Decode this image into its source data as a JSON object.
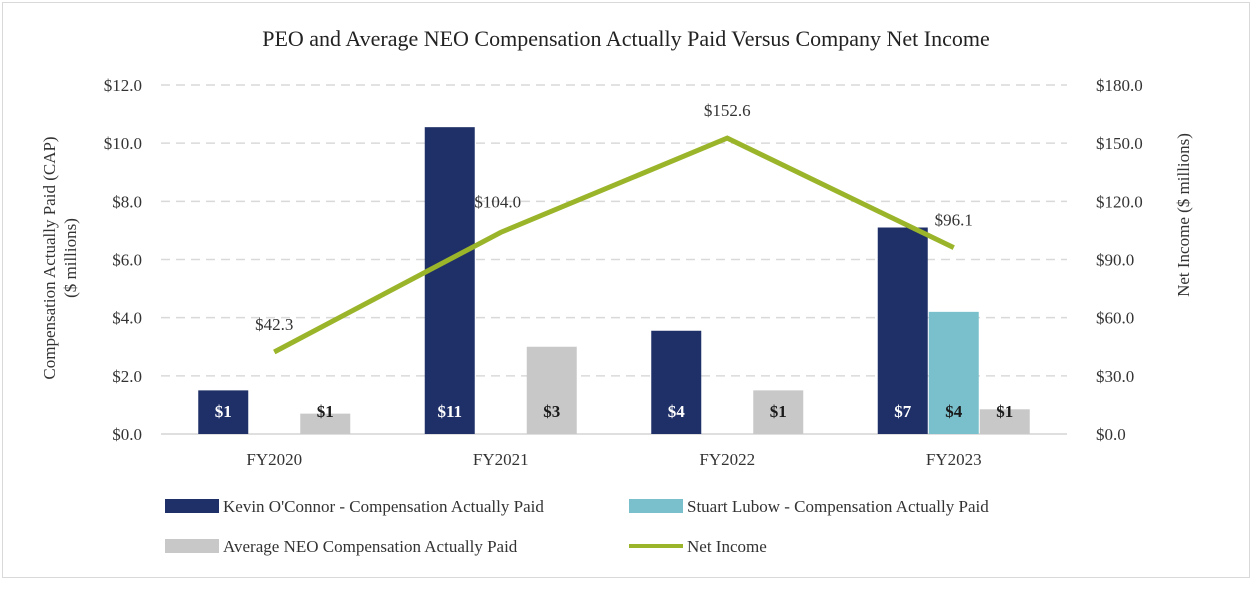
{
  "chart_data": {
    "type": "bar",
    "title": "PEO and Average NEO Compensation Actually Paid Versus Company Net Income",
    "categories": [
      "FY2020",
      "FY2021",
      "FY2022",
      "FY2023"
    ],
    "ylabel": "Compensation Actually Paid (CAP)",
    "ylabel_sub": "($ millions)",
    "y2label": "Net Income ($ millions)",
    "ylim": [
      0,
      12
    ],
    "y2lim": [
      0,
      180
    ],
    "y_ticks": [
      "$0.0",
      "$2.0",
      "$4.0",
      "$6.0",
      "$8.0",
      "$10.0",
      "$12.0"
    ],
    "y2_ticks": [
      "$0.0",
      "$30.0",
      "$60.0",
      "$90.0",
      "$120.0",
      "$150.0",
      "$180.0"
    ],
    "grid": true,
    "legend": "bottom",
    "series": [
      {
        "name": "Kevin O'Connor - Compensation Actually Paid",
        "kind": "bar",
        "color": "#1f3068",
        "label_color": "#ffffff",
        "values": [
          1.5,
          10.55,
          3.55,
          7.1
        ],
        "labels": [
          "$1",
          "$11",
          "$4",
          "$7"
        ]
      },
      {
        "name": "Stuart Lubow - Compensation Actually Paid",
        "kind": "bar",
        "color": "#79c0cc",
        "label_color": "#1a1a1a",
        "values": [
          null,
          null,
          null,
          4.2
        ],
        "labels": [
          "",
          "",
          "",
          "$4"
        ]
      },
      {
        "name": "Average NEO Compensation Actually Paid",
        "kind": "bar",
        "color": "#c8c8c8",
        "label_color": "#1a1a1a",
        "values": [
          0.7,
          3.0,
          1.5,
          0.85
        ],
        "labels": [
          "$1",
          "$3",
          "$1",
          "$1"
        ]
      },
      {
        "name": "Net Income",
        "kind": "line",
        "axis": "right",
        "color": "#9bb52a",
        "values": [
          42.3,
          104.0,
          152.6,
          96.1
        ],
        "labels": [
          "$42.3",
          "$104.0",
          "$152.6",
          "$96.1"
        ]
      }
    ]
  }
}
